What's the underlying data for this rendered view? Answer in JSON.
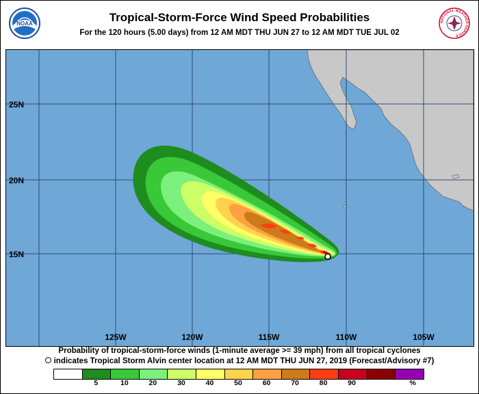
{
  "header": {
    "title": "Tropical-Storm-Force Wind Speed Probabilities",
    "subtitle": "For the 120 hours (5.00 days) from 12 AM MDT THU JUN 27 to 12 AM MDT TUE JUL 02",
    "left_logo_text": "NOAA",
    "right_logo_text": "NATIONAL WEATHER SERVICE"
  },
  "map": {
    "lat_labels": [
      "25N",
      "20N",
      "15N"
    ],
    "lon_labels": [
      "125W",
      "120W",
      "115W",
      "110W",
      "105W"
    ],
    "colors": {
      "ocean": "#6fa7d6",
      "land": "#c8c8c8"
    }
  },
  "footer": {
    "line1": "Probability of tropical-storm-force winds (1-minute average >= 39 mph) from all tropical cyclones",
    "line2": "indicates Tropical Storm Alvin center location at 12 AM MDT THU JUN 27, 2019 (Forecast/Advisory #7)"
  },
  "legend": {
    "colors": [
      "#ffffff",
      "#1e8c1e",
      "#38c838",
      "#7cf07c",
      "#ccff66",
      "#ffff66",
      "#ffd24d",
      "#ffa040",
      "#cc7a1a",
      "#ff3c14",
      "#c8001e",
      "#8c0000",
      "#9600b4"
    ],
    "labels": [
      "5",
      "10",
      "20",
      "30",
      "40",
      "50",
      "60",
      "70",
      "80",
      "90",
      "%"
    ]
  }
}
